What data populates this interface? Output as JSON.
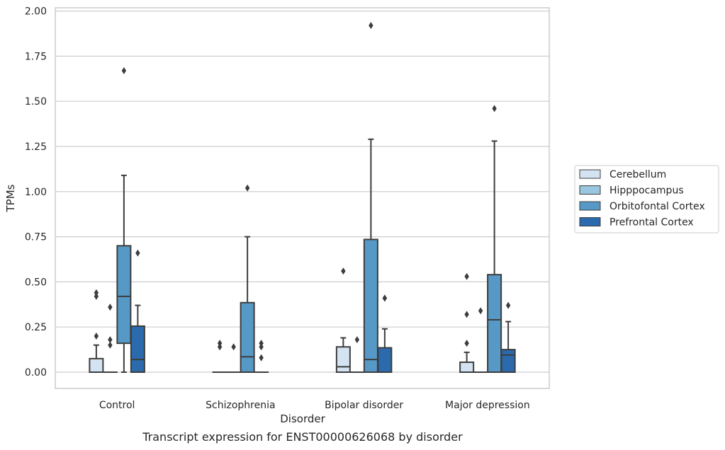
{
  "chart_data": {
    "type": "box",
    "caption": "Transcript expression for ENST00000626068 by disorder",
    "xlabel": "Disorder",
    "ylabel": "TPMs",
    "ylim": [
      -0.09,
      2.02
    ],
    "yticks": [
      "0.00",
      "0.25",
      "0.50",
      "0.75",
      "1.00",
      "1.25",
      "1.50",
      "1.75",
      "2.00"
    ],
    "grid": true,
    "legend_position": "right",
    "categories": [
      "Control",
      "Schizophrenia",
      "Bipolar disorder",
      "Major depression"
    ],
    "series": [
      {
        "name": "Cerebellum",
        "color": "#d3e3f2",
        "boxes": [
          {
            "min": 0,
            "q1": 0,
            "median": 0,
            "q3": 0.075,
            "max": 0.15,
            "outliers": [
              0.44,
              0.42,
              0.2
            ]
          },
          {
            "min": 0,
            "q1": 0,
            "median": 0,
            "q3": 0,
            "max": 0,
            "outliers": [
              0.16,
              0.14
            ]
          },
          {
            "min": 0,
            "q1": 0,
            "median": 0.03,
            "q3": 0.14,
            "max": 0.19,
            "outliers": [
              0.56
            ]
          },
          {
            "min": 0,
            "q1": 0,
            "median": 0,
            "q3": 0.055,
            "max": 0.11,
            "outliers": [
              0.53,
              0.32,
              0.16
            ]
          }
        ]
      },
      {
        "name": "Hipppocampus",
        "color": "#9ac7e0",
        "boxes": [
          {
            "min": 0,
            "q1": 0,
            "median": 0,
            "q3": 0,
            "max": 0,
            "outliers": [
              0.36,
              0.18,
              0.15
            ]
          },
          {
            "min": 0,
            "q1": 0,
            "median": 0,
            "q3": 0,
            "max": 0,
            "outliers": [
              0.14
            ]
          },
          {
            "min": 0,
            "q1": 0,
            "median": 0,
            "q3": 0,
            "max": 0,
            "outliers": [
              0.18
            ]
          },
          {
            "min": 0,
            "q1": 0,
            "median": 0,
            "q3": 0,
            "max": 0,
            "outliers": [
              0.34
            ]
          }
        ]
      },
      {
        "name": "Orbitofontal Cortex",
        "color": "#5799c6",
        "boxes": [
          {
            "min": 0,
            "q1": 0.16,
            "median": 0.42,
            "q3": 0.7,
            "max": 1.09,
            "outliers": [
              1.67
            ]
          },
          {
            "min": 0,
            "q1": 0,
            "median": 0.085,
            "q3": 0.385,
            "max": 0.75,
            "outliers": [
              1.02
            ]
          },
          {
            "min": 0,
            "q1": 0,
            "median": 0.07,
            "q3": 0.735,
            "max": 1.29,
            "outliers": [
              1.92
            ]
          },
          {
            "min": 0,
            "q1": 0,
            "median": 0.29,
            "q3": 0.54,
            "max": 1.28,
            "outliers": [
              1.46
            ]
          }
        ]
      },
      {
        "name": "Prefrontal Cortex",
        "color": "#2a6aad",
        "boxes": [
          {
            "min": 0,
            "q1": 0,
            "median": 0.07,
            "q3": 0.255,
            "max": 0.37,
            "outliers": [
              0.66
            ]
          },
          {
            "min": 0,
            "q1": 0,
            "median": 0,
            "q3": 0,
            "max": 0,
            "outliers": [
              0.16,
              0.14,
              0.08
            ]
          },
          {
            "min": 0,
            "q1": 0,
            "median": 0,
            "q3": 0.135,
            "max": 0.24,
            "outliers": [
              0.41,
              0.41
            ]
          },
          {
            "min": 0,
            "q1": 0,
            "median": 0.095,
            "q3": 0.125,
            "max": 0.28,
            "outliers": [
              0.37
            ]
          }
        ]
      }
    ]
  }
}
